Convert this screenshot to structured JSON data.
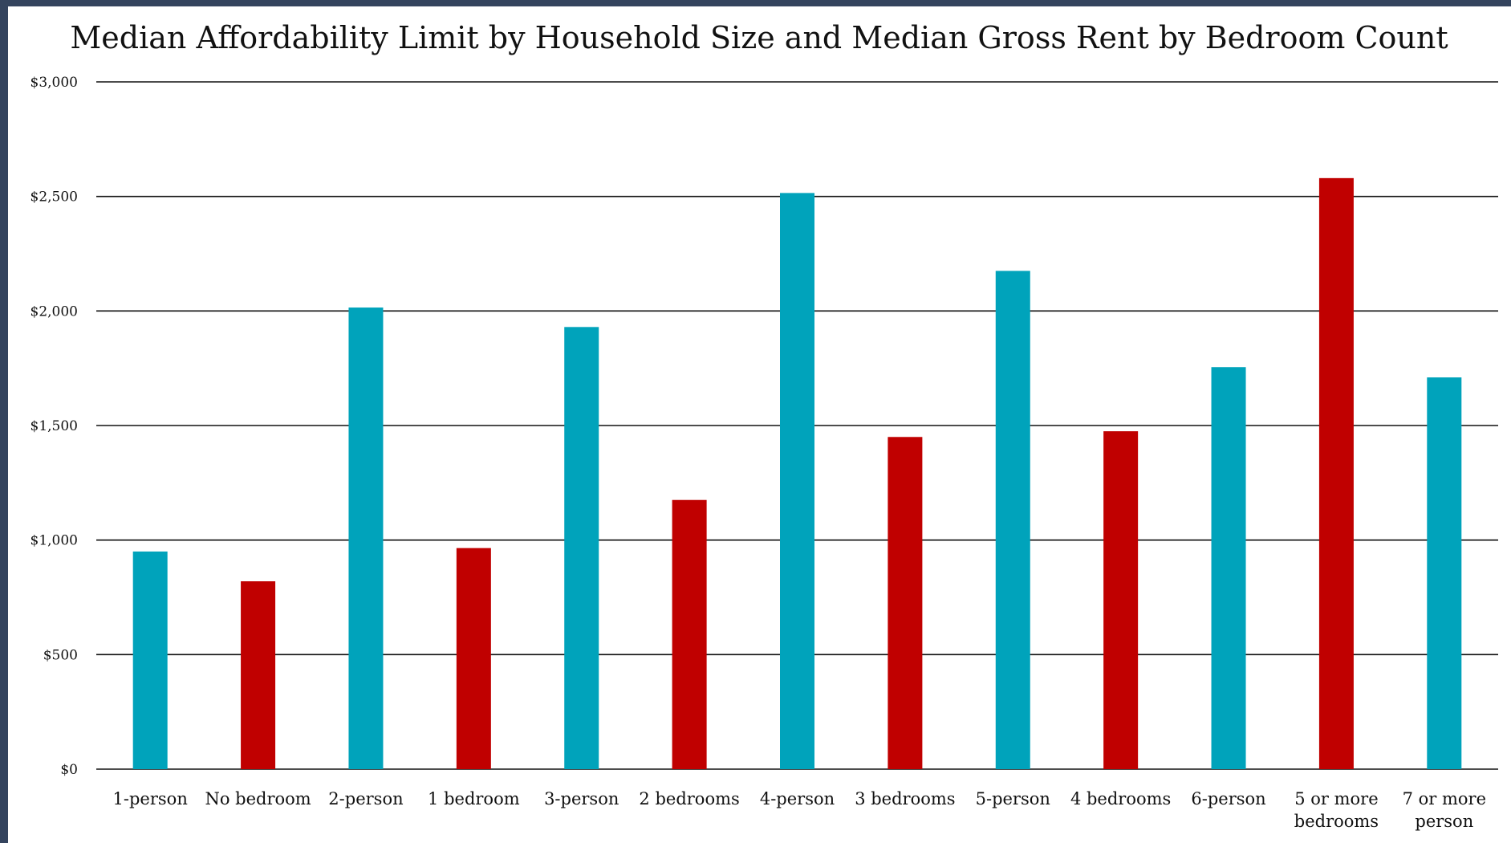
{
  "chart_data": {
    "type": "bar",
    "title": "Median Affordability Limit by Household Size and Median Gross Rent by Bedroom Count",
    "xlabel": "",
    "ylabel": "",
    "ylim": [
      0,
      3000
    ],
    "yticks": [
      0,
      500,
      1000,
      1500,
      2000,
      2500,
      3000
    ],
    "ytick_labels": [
      "$0",
      "$500",
      "$1,000",
      "$1,500",
      "$2,000",
      "$2,500",
      "$3,000"
    ],
    "grid": true,
    "legend": "none",
    "categories": [
      "1-person",
      "No bedroom",
      "2-person",
      "1 bedroom",
      "3-person",
      "2 bedrooms",
      "4-person",
      "3 bedrooms",
      "5-person",
      "4 bedrooms",
      "6-person",
      "5 or more bedrooms",
      "7 or more person"
    ],
    "category_lines": [
      [
        "1-person"
      ],
      [
        "No bedroom"
      ],
      [
        "2-person"
      ],
      [
        "1 bedroom"
      ],
      [
        "3-person"
      ],
      [
        "2 bedrooms"
      ],
      [
        "4-person"
      ],
      [
        "3 bedrooms"
      ],
      [
        "5-person"
      ],
      [
        "4 bedrooms"
      ],
      [
        "6-person"
      ],
      [
        "5 or more",
        "bedrooms"
      ],
      [
        "7 or more",
        "person"
      ]
    ],
    "values": [
      950,
      820,
      2015,
      965,
      1930,
      1175,
      2515,
      1450,
      2175,
      1475,
      1755,
      2580,
      1710
    ],
    "bar_colors": [
      "#00a3bb",
      "#c00000",
      "#00a3bb",
      "#c00000",
      "#00a3bb",
      "#c00000",
      "#00a3bb",
      "#c00000",
      "#00a3bb",
      "#c00000",
      "#00a3bb",
      "#c00000",
      "#00a3bb"
    ]
  }
}
